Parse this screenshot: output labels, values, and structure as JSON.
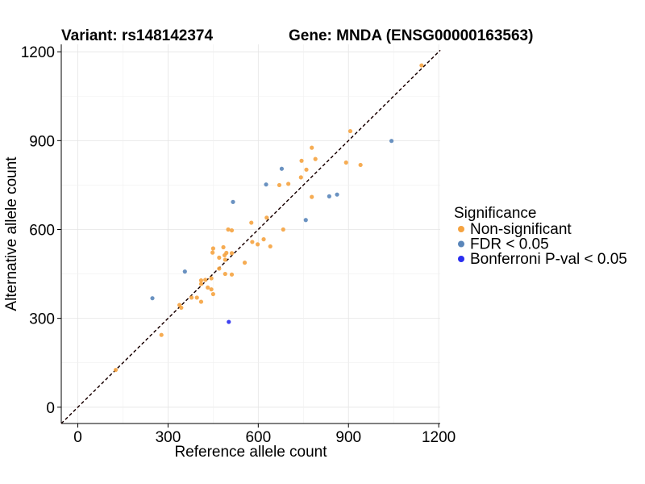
{
  "chart_data": {
    "type": "scatter",
    "title_left": "Variant: rs148142374",
    "title_right": "Gene: MNDA (ENSG00000163563)",
    "xlabel": "Reference allele count",
    "ylabel": "Alternative allele count",
    "xlim": [
      -55,
      1205
    ],
    "ylim": [
      -55,
      1225
    ],
    "xticks": [
      0,
      300,
      600,
      900,
      1200
    ],
    "yticks": [
      0,
      300,
      600,
      900,
      1200
    ],
    "grid": true,
    "legend_position": "right",
    "legend_title": "Significance",
    "colors": {
      "Non-significant": "#f5a340",
      "FDR < 0.05": "#5a86ba",
      "Bonferroni P-val < 0.05": "#2a2ef0",
      "diag_black": "#000000",
      "diag_red": "#cc0000"
    },
    "series": [
      {
        "name": "Non-significant",
        "points": [
          [
            1143,
            1154
          ],
          [
            906,
            932
          ],
          [
            778,
            876
          ],
          [
            892,
            826
          ],
          [
            940,
            818
          ],
          [
            744,
            832
          ],
          [
            790,
            838
          ],
          [
            760,
            802
          ],
          [
            742,
            776
          ],
          [
            700,
            754
          ],
          [
            670,
            750
          ],
          [
            778,
            710
          ],
          [
            577,
            623
          ],
          [
            628,
            640
          ],
          [
            512,
            597
          ],
          [
            500,
            600
          ],
          [
            580,
            558
          ],
          [
            598,
            550
          ],
          [
            618,
            567
          ],
          [
            640,
            543
          ],
          [
            683,
            600
          ],
          [
            484,
            540
          ],
          [
            450,
            536
          ],
          [
            448,
            522
          ],
          [
            470,
            505
          ],
          [
            488,
            513
          ],
          [
            494,
            521
          ],
          [
            512,
            520
          ],
          [
            490,
            498
          ],
          [
            555,
            488
          ],
          [
            470,
            468
          ],
          [
            490,
            450
          ],
          [
            512,
            448
          ],
          [
            424,
            430
          ],
          [
            410,
            428
          ],
          [
            444,
            435
          ],
          [
            410,
            416
          ],
          [
            432,
            404
          ],
          [
            444,
            398
          ],
          [
            450,
            382
          ],
          [
            378,
            370
          ],
          [
            396,
            370
          ],
          [
            410,
            356
          ],
          [
            338,
            345
          ],
          [
            344,
            336
          ],
          [
            278,
            244
          ],
          [
            126,
            126
          ]
        ]
      },
      {
        "name": "FDR < 0.05",
        "points": [
          [
            1043,
            899
          ],
          [
            678,
            805
          ],
          [
            626,
            752
          ],
          [
            516,
            693
          ],
          [
            836,
            712
          ],
          [
            862,
            718
          ],
          [
            758,
            632
          ],
          [
            356,
            458
          ],
          [
            248,
            368
          ]
        ]
      },
      {
        "name": "Bonferroni P-val < 0.05",
        "points": [
          [
            502,
            288
          ]
        ]
      }
    ]
  }
}
